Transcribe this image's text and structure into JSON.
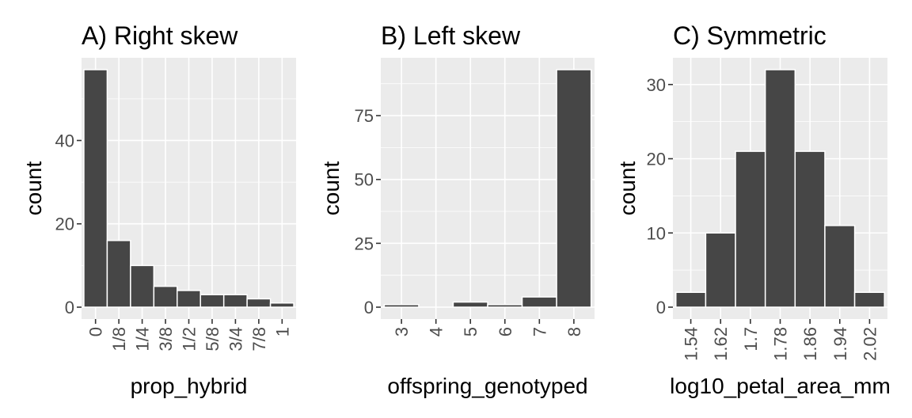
{
  "chart_data": [
    {
      "type": "bar",
      "title": "A) Right skew",
      "xlabel": "prop_hybrid",
      "ylabel": "count",
      "categories": [
        "0",
        "1/8",
        "1/4",
        "3/8",
        "1/2",
        "5/8",
        "3/4",
        "7/8",
        "1"
      ],
      "values": [
        57,
        16,
        10,
        5,
        4,
        3,
        3,
        2,
        1
      ],
      "ylim": [
        0,
        57
      ],
      "yticks": [
        0,
        20,
        40
      ],
      "ytick_labels": [
        "0",
        "20",
        "40"
      ],
      "grid": true
    },
    {
      "type": "bar",
      "title": "B) Left skew",
      "xlabel": "offspring_genotyped",
      "ylabel": "count",
      "categories": [
        "3",
        "4",
        "5",
        "6",
        "7",
        "8"
      ],
      "values": [
        1,
        0,
        2,
        1,
        4,
        93
      ],
      "ylim": [
        0,
        93
      ],
      "yticks": [
        0,
        25,
        50,
        75
      ],
      "ytick_labels": [
        "0",
        "25",
        "50",
        "75"
      ],
      "grid": true
    },
    {
      "type": "bar",
      "title": "C) Symmetric",
      "xlabel": "log10_petal_area_mm",
      "ylabel": "count",
      "categories": [
        "1.54",
        "1.62",
        "1.7",
        "1.78",
        "1.86",
        "1.94",
        "2.02"
      ],
      "values": [
        2,
        10,
        21,
        32,
        21,
        11,
        2
      ],
      "ylim": [
        0,
        32
      ],
      "yticks": [
        0,
        10,
        20,
        30
      ],
      "ytick_labels": [
        "0",
        "10",
        "20",
        "30"
      ],
      "grid": true
    }
  ]
}
